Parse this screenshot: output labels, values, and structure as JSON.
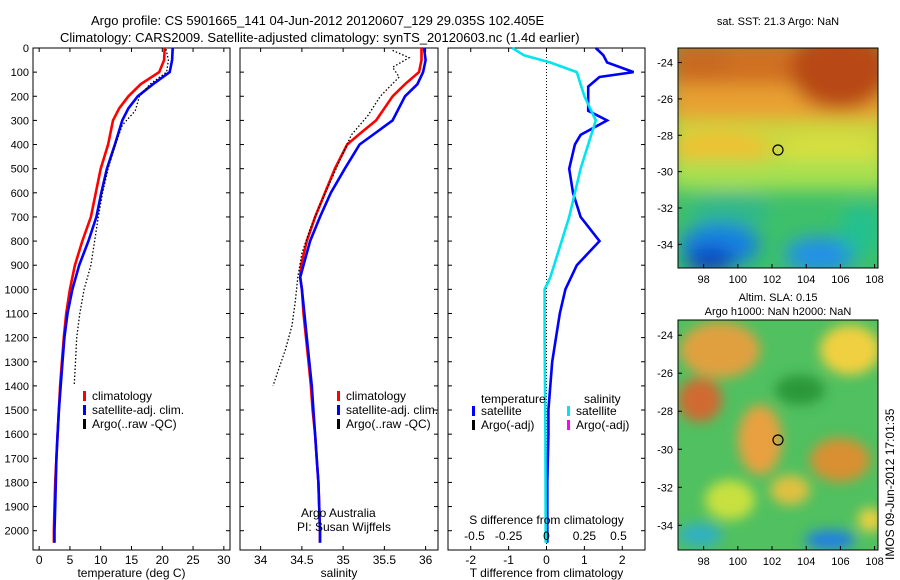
{
  "header": {
    "line1": "Argo profile: CS 5901665_141 04-Jun-2012 20120607_129 29.035S 102.405E",
    "line2": "Climatology: CARS2009. Satellite-adjusted climatology: synTS_20120603.nc (1.4d earlier)"
  },
  "side_label": "IMOS 09-Jun-2012 17:01:35",
  "chart_data": [
    {
      "id": "temperature",
      "type": "line",
      "xlabel": "temperature (deg C)",
      "ylabel": "",
      "xlim": [
        -1,
        31
      ],
      "ylim": [
        0,
        2080
      ],
      "y_reversed": true,
      "xticks": [
        0,
        5,
        10,
        15,
        20,
        25,
        30
      ],
      "yticks": [
        0,
        100,
        200,
        300,
        400,
        500,
        600,
        700,
        800,
        900,
        1000,
        1100,
        1200,
        1300,
        1400,
        1500,
        1600,
        1700,
        1800,
        1900,
        2000
      ],
      "legend": {
        "position": "bottom-right",
        "items": [
          "climatology",
          "satellite-adj. clim.",
          "Argo(..raw -QC)"
        ]
      },
      "series": [
        {
          "name": "climatology",
          "color": "#ff0000",
          "points": [
            [
              20.4,
              0
            ],
            [
              20.3,
              50
            ],
            [
              19.5,
              100
            ],
            [
              16.5,
              150
            ],
            [
              14.5,
              200
            ],
            [
              13,
              250
            ],
            [
              12,
              300
            ],
            [
              11.2,
              400
            ],
            [
              10,
              500
            ],
            [
              9.2,
              600
            ],
            [
              8.4,
              700
            ],
            [
              7,
              800
            ],
            [
              5.8,
              900
            ],
            [
              5,
              1000
            ],
            [
              4.4,
              1100
            ],
            [
              4,
              1200
            ],
            [
              3.7,
              1300
            ],
            [
              3.4,
              1400
            ],
            [
              3.2,
              1500
            ],
            [
              3,
              1600
            ],
            [
              2.8,
              1700
            ],
            [
              2.6,
              1800
            ],
            [
              2.5,
              1900
            ],
            [
              2.4,
              2000
            ],
            [
              2.4,
              2050
            ]
          ]
        },
        {
          "name": "satellite-adj. clim.",
          "color": "#0000ff",
          "points": [
            [
              21.7,
              0
            ],
            [
              21.6,
              50
            ],
            [
              21.2,
              100
            ],
            [
              18.5,
              150
            ],
            [
              16,
              200
            ],
            [
              14.5,
              250
            ],
            [
              13.5,
              300
            ],
            [
              12.3,
              400
            ],
            [
              11,
              500
            ],
            [
              10.1,
              600
            ],
            [
              9.3,
              700
            ],
            [
              8,
              800
            ],
            [
              6.5,
              900
            ],
            [
              5.4,
              1000
            ],
            [
              4.6,
              1100
            ],
            [
              4.1,
              1200
            ],
            [
              3.8,
              1300
            ],
            [
              3.5,
              1400
            ],
            [
              3.2,
              1500
            ],
            [
              3,
              1600
            ],
            [
              2.8,
              1700
            ],
            [
              2.7,
              1800
            ],
            [
              2.6,
              1900
            ],
            [
              2.5,
              2000
            ],
            [
              2.5,
              2050
            ]
          ]
        },
        {
          "name": "Argo(..raw -QC)",
          "color": "#000000",
          "dashed": true,
          "points": [
            [
              20.6,
              5
            ],
            [
              21,
              50
            ],
            [
              20.7,
              100
            ],
            [
              18,
              150
            ],
            [
              16.3,
              200
            ],
            [
              15.6,
              260
            ],
            [
              13.5,
              320
            ],
            [
              12.4,
              400
            ],
            [
              11.2,
              500
            ],
            [
              10.3,
              600
            ],
            [
              9.6,
              700
            ],
            [
              9,
              800
            ],
            [
              8.4,
              900
            ],
            [
              7.3,
              1000
            ],
            [
              6.6,
              1100
            ],
            [
              6.1,
              1200
            ],
            [
              5.9,
              1300
            ],
            [
              5.7,
              1400
            ]
          ]
        }
      ]
    },
    {
      "id": "salinity",
      "type": "line",
      "xlabel": "salinity",
      "ylabel": "",
      "xlim": [
        33.75,
        36.15
      ],
      "ylim": [
        0,
        2080
      ],
      "y_reversed": true,
      "xticks": [
        34,
        34.5,
        35,
        35.5,
        36
      ],
      "legend": {
        "position": "bottom-right",
        "items": [
          "climatology",
          "satellite-adj. clim.",
          "Argo(..raw -QC)"
        ]
      },
      "annotation": [
        "Argo Australia",
        "PI: Susan Wijffels"
      ],
      "series": [
        {
          "name": "climatology",
          "color": "#ff0000",
          "points": [
            [
              35.95,
              0
            ],
            [
              35.95,
              50
            ],
            [
              35.92,
              100
            ],
            [
              35.75,
              150
            ],
            [
              35.6,
              200
            ],
            [
              35.4,
              300
            ],
            [
              35.22,
              350
            ],
            [
              35.05,
              400
            ],
            [
              34.9,
              500
            ],
            [
              34.78,
              600
            ],
            [
              34.66,
              700
            ],
            [
              34.56,
              800
            ],
            [
              34.49,
              900
            ],
            [
              34.48,
              950
            ],
            [
              34.5,
              1000
            ],
            [
              34.52,
              1100
            ],
            [
              34.55,
              1200
            ],
            [
              34.58,
              1300
            ],
            [
              34.61,
              1400
            ],
            [
              34.63,
              1500
            ],
            [
              34.66,
              1600
            ],
            [
              34.68,
              1700
            ],
            [
              34.7,
              1800
            ],
            [
              34.71,
              1900
            ],
            [
              34.72,
              2000
            ],
            [
              34.72,
              2050
            ]
          ]
        },
        {
          "name": "satellite-adj. clim.",
          "color": "#0000ff",
          "points": [
            [
              35.98,
              0
            ],
            [
              36,
              50
            ],
            [
              35.97,
              100
            ],
            [
              35.9,
              150
            ],
            [
              35.75,
              200
            ],
            [
              35.6,
              300
            ],
            [
              35.4,
              350
            ],
            [
              35.2,
              400
            ],
            [
              35.02,
              500
            ],
            [
              34.85,
              600
            ],
            [
              34.72,
              700
            ],
            [
              34.6,
              800
            ],
            [
              34.52,
              900
            ],
            [
              34.48,
              950
            ],
            [
              34.5,
              1000
            ],
            [
              34.53,
              1100
            ],
            [
              34.56,
              1200
            ],
            [
              34.59,
              1300
            ],
            [
              34.62,
              1400
            ],
            [
              34.64,
              1500
            ],
            [
              34.66,
              1600
            ],
            [
              34.68,
              1700
            ],
            [
              34.7,
              1800
            ],
            [
              34.71,
              1900
            ],
            [
              34.72,
              2000
            ],
            [
              34.72,
              2050
            ]
          ]
        },
        {
          "name": "Argo(..raw -QC)",
          "color": "#000000",
          "dashed": true,
          "points": [
            [
              35.6,
              10
            ],
            [
              35.8,
              40
            ],
            [
              35.6,
              80
            ],
            [
              35.68,
              120
            ],
            [
              35.45,
              200
            ],
            [
              35.3,
              280
            ],
            [
              35.1,
              360
            ],
            [
              34.98,
              450
            ],
            [
              34.85,
              550
            ],
            [
              34.72,
              650
            ],
            [
              34.6,
              750
            ],
            [
              34.5,
              850
            ],
            [
              34.45,
              950
            ],
            [
              34.42,
              1050
            ],
            [
              34.38,
              1150
            ],
            [
              34.3,
              1250
            ],
            [
              34.2,
              1350
            ],
            [
              34.15,
              1400
            ]
          ]
        }
      ]
    },
    {
      "id": "difference",
      "type": "line",
      "xlabel": "T difference from climatology",
      "xlabel_top": "S difference from climatology",
      "xlim": [
        -2.6,
        2.6
      ],
      "ylim": [
        0,
        2080
      ],
      "y_reversed": true,
      "xticks": [
        -2,
        -1,
        0,
        1,
        2
      ],
      "xticks_top": [
        "-0.5",
        "-0.25",
        "0",
        "0.25",
        "0.5"
      ],
      "legend": {
        "position": "bottom",
        "headers": [
          "temperature",
          "salinity"
        ],
        "items": [
          "satellite",
          "Argo(-adj)",
          "satellite",
          "Argo(-adj)"
        ]
      },
      "series": [
        {
          "name": "temperature satellite",
          "color": "#0000ff",
          "points": [
            [
              1.3,
              0
            ],
            [
              1.5,
              30
            ],
            [
              1.6,
              60
            ],
            [
              2.3,
              100
            ],
            [
              1.4,
              120
            ],
            [
              1.1,
              160
            ],
            [
              1.1,
              260
            ],
            [
              1.6,
              300
            ],
            [
              0.9,
              360
            ],
            [
              0.75,
              400
            ],
            [
              0.6,
              500
            ],
            [
              0.7,
              600
            ],
            [
              0.9,
              700
            ],
            [
              1.4,
              800
            ],
            [
              0.8,
              900
            ],
            [
              0.5,
              1000
            ],
            [
              0.35,
              1100
            ],
            [
              0.25,
              1200
            ],
            [
              0.15,
              1300
            ],
            [
              0.1,
              1400
            ],
            [
              0.05,
              1500
            ],
            [
              0.05,
              1600
            ],
            [
              0.02,
              1800
            ],
            [
              0.02,
              2050
            ]
          ]
        },
        {
          "name": "salinity satellite",
          "color": "#00e5ee",
          "points": [
            [
              -0.9,
              0
            ],
            [
              -0.6,
              30
            ],
            [
              0.1,
              60
            ],
            [
              0.8,
              100
            ],
            [
              0.9,
              150
            ],
            [
              1,
              200
            ],
            [
              1.3,
              300
            ],
            [
              1.1,
              400
            ],
            [
              0.9,
              500
            ],
            [
              0.6,
              700
            ],
            [
              0.3,
              850
            ],
            [
              0.1,
              950
            ],
            [
              -0.05,
              1000
            ],
            [
              -0.05,
              1200
            ],
            [
              -0.03,
              1600
            ],
            [
              -0.02,
              2050
            ]
          ]
        }
      ]
    }
  ],
  "maps": [
    {
      "id": "sst",
      "title": "sat. SST: 21.3 Argo: NaN",
      "xticks": [
        "98",
        "100",
        "102",
        "104",
        "106",
        "108"
      ],
      "yticks": [
        "-24",
        "-26",
        "-28",
        "-30",
        "-32",
        "-34"
      ],
      "marker": {
        "lon": 102.405,
        "lat": -29.035
      }
    },
    {
      "id": "sla",
      "title1": "Altim. SLA: 0.15",
      "title2": "Argo h1000: NaN h2000: NaN",
      "xticks": [
        "98",
        "100",
        "102",
        "104",
        "106",
        "108"
      ],
      "yticks": [
        "-24",
        "-26",
        "-28",
        "-30",
        "-32",
        "-34"
      ],
      "marker": {
        "lon": 102.405,
        "lat": -29.035
      }
    }
  ]
}
